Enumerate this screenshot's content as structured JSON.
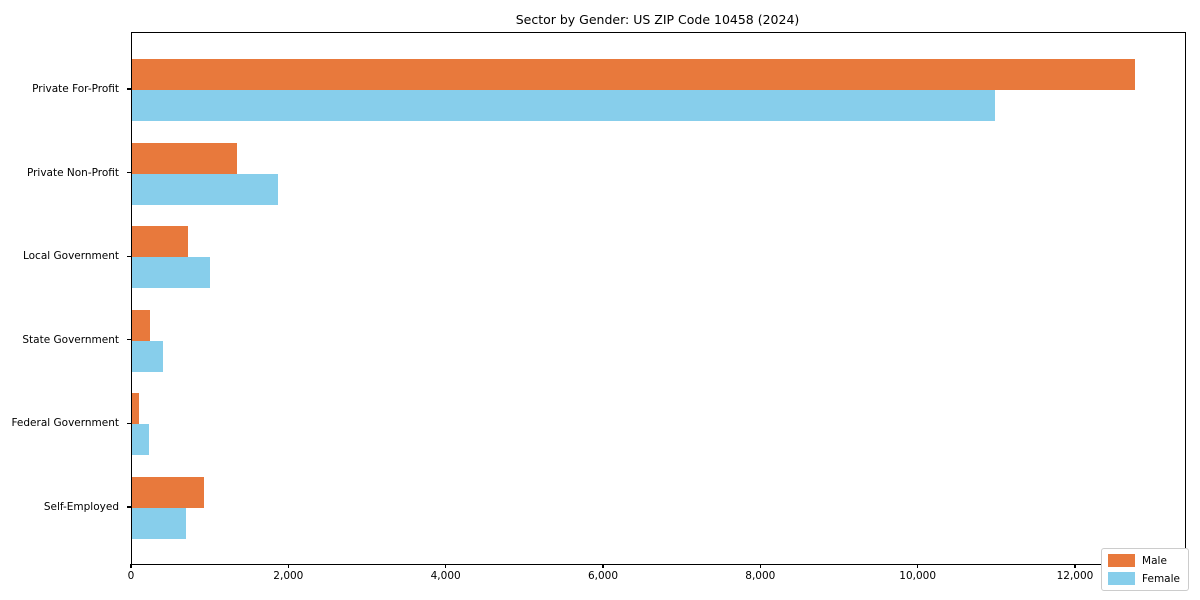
{
  "chart_data": {
    "type": "bar",
    "orientation": "horizontal",
    "title": "Sector by Gender: US ZIP Code 10458 (2024)",
    "categories": [
      "Private For-Profit",
      "Private Non-Profit",
      "Local Government",
      "State Government",
      "Federal Government",
      "Self-Employed"
    ],
    "series": [
      {
        "name": "Male",
        "color": "#e8793c",
        "values": [
          12750,
          1340,
          710,
          230,
          85,
          915
        ]
      },
      {
        "name": "Female",
        "color": "#87ceeb",
        "values": [
          10970,
          1855,
          990,
          395,
          210,
          685
        ]
      }
    ],
    "xlim": [
      0,
      13386
    ],
    "xticks": [
      0,
      2000,
      4000,
      6000,
      8000,
      10000,
      12000
    ],
    "xtick_labels": [
      "0",
      "2,000",
      "4,000",
      "6,000",
      "8,000",
      "10,000",
      "12,000"
    ],
    "legend_position": "lower right",
    "grid": false,
    "background_color": "#ffffff",
    "spine_color": "#000000"
  }
}
